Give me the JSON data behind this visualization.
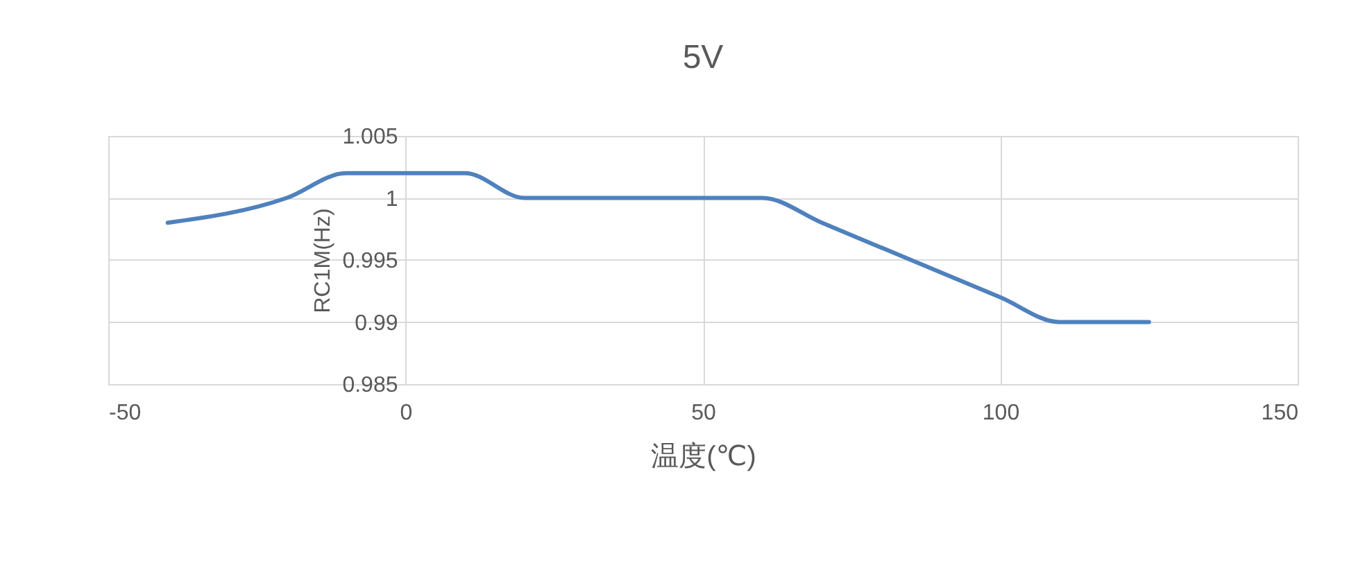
{
  "chart_data": {
    "type": "line",
    "title": "5V",
    "xlabel": "温度(℃)",
    "ylabel": "RC1M(Hz)",
    "x": [
      -40,
      -20,
      -10,
      0,
      10,
      20,
      40,
      60,
      70,
      85,
      100,
      110,
      125
    ],
    "series": [
      {
        "color": "#4f81bd",
        "values": [
          0.998,
          1.0,
          1.002,
          1.002,
          1.002,
          1.0,
          1.0,
          1.0,
          0.998,
          0.995,
          0.992,
          0.99,
          0.99
        ]
      }
    ],
    "xlim": [
      -50,
      150
    ],
    "xticks": [
      -50,
      0,
      50,
      100,
      150
    ],
    "ylim": [
      0.985,
      1.005
    ],
    "yticks": [
      0.985,
      0.99,
      0.995,
      1,
      1.005
    ],
    "grid": true,
    "legend": false,
    "marker": "none",
    "line_style": "solid"
  }
}
